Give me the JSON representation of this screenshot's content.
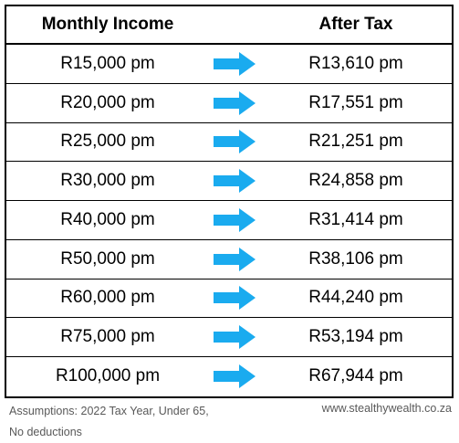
{
  "header": {
    "income_label": "Monthly Income",
    "after_label": "After Tax"
  },
  "arrow_color": "#1AABEF",
  "rows": [
    {
      "income": "R15,000 pm",
      "after": "R13,610 pm"
    },
    {
      "income": "R20,000 pm",
      "after": "R17,551 pm"
    },
    {
      "income": "R25,000 pm",
      "after": "R21,251 pm"
    },
    {
      "income": "R30,000 pm",
      "after": "R24,858 pm"
    },
    {
      "income": "R40,000 pm",
      "after": "R31,414 pm"
    },
    {
      "income": "R50,000 pm",
      "after": "R38,106 pm"
    },
    {
      "income": "R60,000 pm",
      "after": "R44,240 pm"
    },
    {
      "income": "R75,000 pm",
      "after": "R53,194 pm"
    },
    {
      "income": "R100,000 pm",
      "after": "R67,944 pm"
    }
  ],
  "footer": {
    "assumptions": "Assumptions: 2022 Tax Year, Under 65, No deductions",
    "website": "www.stealthywealth.co.za"
  }
}
